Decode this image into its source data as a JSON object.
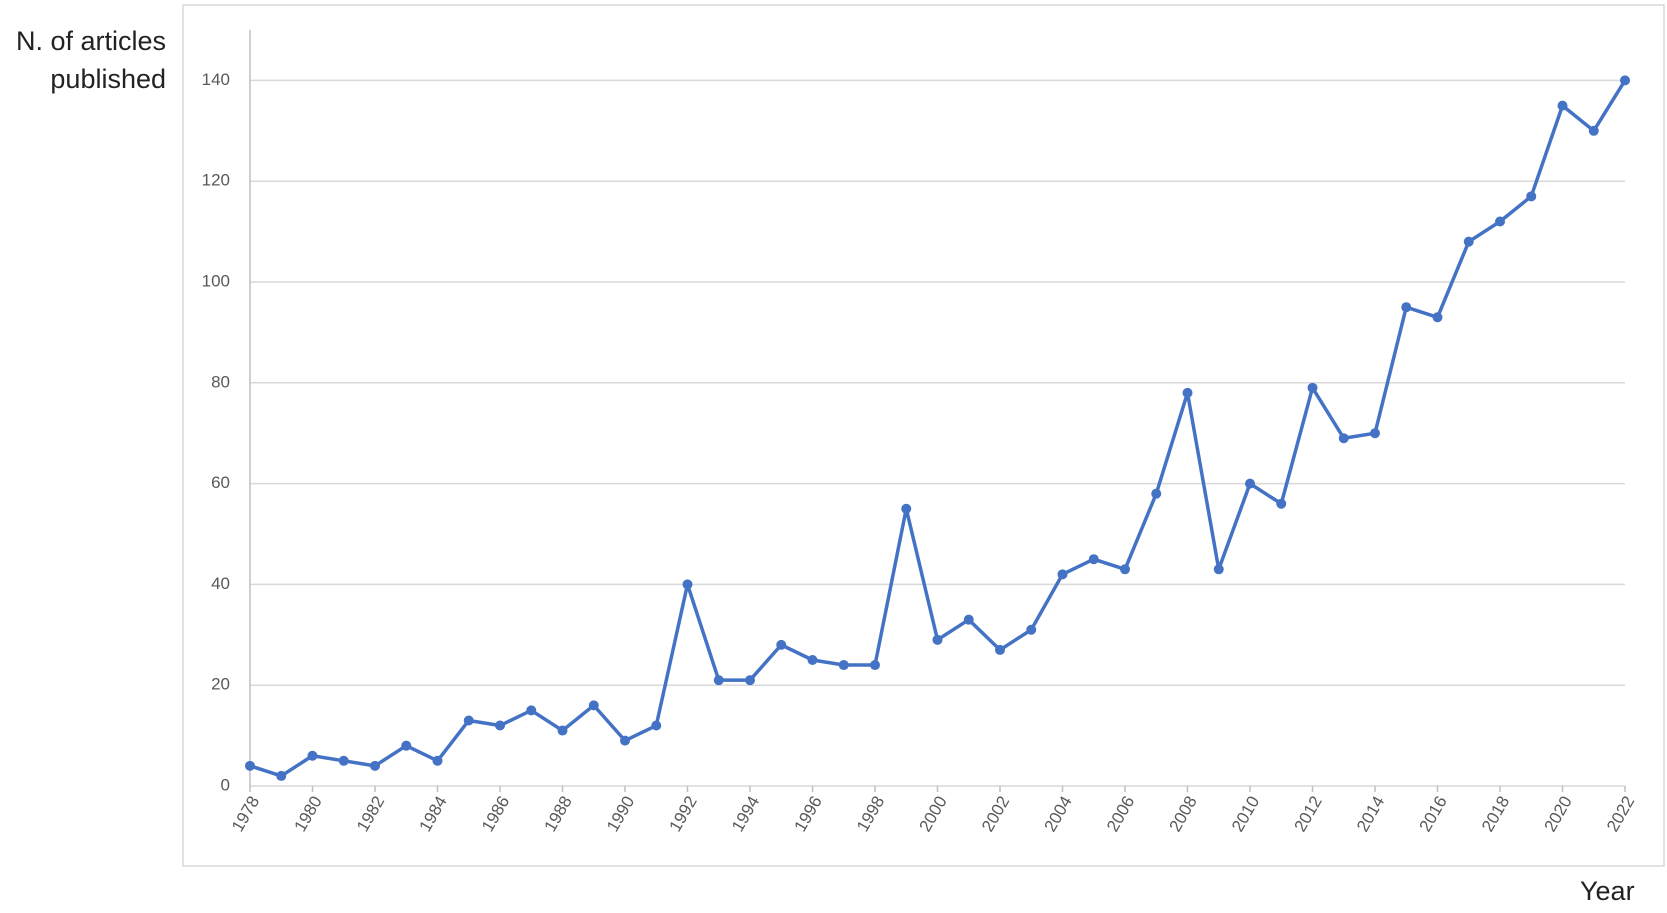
{
  "chart_data": {
    "type": "line",
    "y_label": "N. of articles published",
    "x_label": "Year",
    "x": [
      1978,
      1979,
      1980,
      1981,
      1982,
      1983,
      1984,
      1985,
      1986,
      1987,
      1988,
      1989,
      1990,
      1991,
      1992,
      1993,
      1994,
      1995,
      1996,
      1997,
      1998,
      1999,
      2000,
      2001,
      2002,
      2003,
      2004,
      2005,
      2006,
      2007,
      2008,
      2009,
      2010,
      2011,
      2012,
      2013,
      2014,
      2015,
      2016,
      2017,
      2018,
      2019,
      2020,
      2021,
      2022
    ],
    "series": [
      {
        "color": "#4472c4",
        "values": [
          4,
          2,
          6,
          5,
          4,
          8,
          5,
          13,
          12,
          15,
          11,
          16,
          9,
          12,
          40,
          21,
          21,
          28,
          25,
          24,
          24,
          55,
          29,
          33,
          27,
          31,
          42,
          45,
          43,
          58,
          78,
          43,
          60,
          56,
          79,
          69,
          70,
          95,
          93,
          108,
          112,
          117,
          135,
          130,
          140
        ]
      }
    ],
    "xlim": [
      1978,
      2022
    ],
    "xticks": [
      1978,
      1980,
      1982,
      1984,
      1986,
      1988,
      1990,
      1992,
      1994,
      1996,
      1998,
      2000,
      2002,
      2004,
      2006,
      2008,
      2010,
      2012,
      2014,
      2016,
      2018,
      2020,
      2022
    ],
    "ylim": [
      0,
      150
    ],
    "yticks": [
      0,
      20,
      40,
      60,
      80,
      100,
      120,
      140
    ],
    "grid": true
  }
}
